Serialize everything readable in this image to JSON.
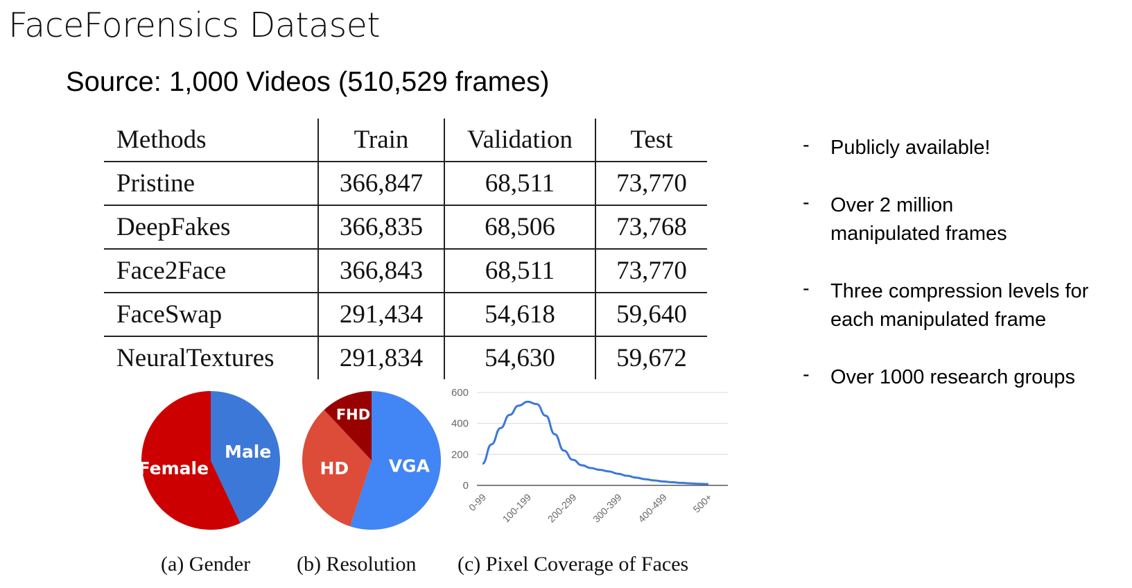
{
  "slide": {
    "title": "FaceForensics Dataset",
    "source": "Source: 1,000 Videos (510,529 frames)"
  },
  "table": {
    "headers": [
      "Methods",
      "Train",
      "Validation",
      "Test"
    ],
    "rows": [
      [
        "Pristine",
        "366,847",
        "68,511",
        "73,770"
      ],
      [
        "DeepFakes",
        "366,835",
        "68,506",
        "73,768"
      ],
      [
        "Face2Face",
        "366,843",
        "68,511",
        "73,770"
      ],
      [
        "FaceSwap",
        "291,434",
        "54,618",
        "59,640"
      ],
      [
        "NeuralTextures",
        "291,834",
        "54,630",
        "59,672"
      ]
    ]
  },
  "bullets": [
    {
      "marker": "-",
      "text": "Publicly available!"
    },
    {
      "marker": "-",
      "text": "Over 2 million manipulated frames"
    },
    {
      "marker": "-",
      "text": "Three compression levels for each manipulated frame"
    },
    {
      "marker": "-",
      "text": "Over 1000 research groups"
    }
  ],
  "captions": {
    "gender": "(a) Gender",
    "resolution": "(b) Resolution",
    "coverage": "(c) Pixel Coverage of Faces"
  },
  "chart_data": [
    {
      "type": "pie",
      "caption": "(a) Gender",
      "slices": [
        {
          "label": "Male",
          "value": 43,
          "color": "#3c78d8"
        },
        {
          "label": "Female",
          "value": 57,
          "color": "#cc0000"
        }
      ]
    },
    {
      "type": "pie",
      "caption": "(b) Resolution",
      "slices": [
        {
          "label": "VGA",
          "value": 55,
          "color": "#4285f4"
        },
        {
          "label": "HD",
          "value": 33,
          "color": "#dd4b39"
        },
        {
          "label": "FHD",
          "value": 12,
          "color": "#990000"
        }
      ]
    },
    {
      "type": "line",
      "caption": "(c) Pixel Coverage of Faces",
      "categories": [
        "0-99",
        "100-199",
        "200-299",
        "300-399",
        "400-499",
        "500+"
      ],
      "x": [
        0,
        0.2,
        0.4,
        0.6,
        0.8,
        1.0,
        1.2,
        1.4,
        1.6,
        1.8,
        2.0,
        2.2,
        2.4,
        2.6,
        2.8,
        3.0,
        3.2,
        3.4,
        3.6,
        3.8,
        4.0,
        4.2,
        4.4,
        4.6,
        4.8,
        5.0
      ],
      "series": [
        {
          "values": [
            140,
            265,
            370,
            455,
            515,
            540,
            525,
            450,
            330,
            225,
            165,
            130,
            112,
            100,
            90,
            75,
            62,
            50,
            40,
            32,
            25,
            20,
            16,
            13,
            10,
            8
          ],
          "color": "#3c78d8"
        }
      ],
      "ylim": [
        0,
        600
      ],
      "yticks": [
        0,
        200,
        400,
        600
      ],
      "grid": true
    }
  ]
}
